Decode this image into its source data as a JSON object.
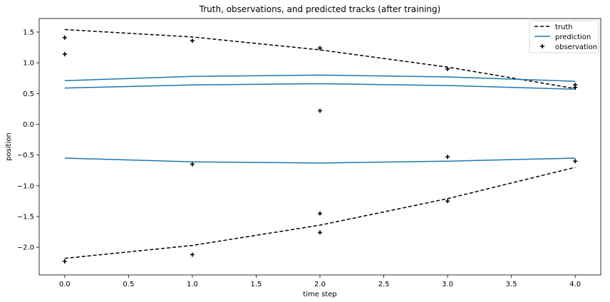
{
  "chart_data": {
    "type": "line",
    "title": "Truth, observations, and predicted tracks (after training)",
    "xlabel": "time step",
    "ylabel": "position",
    "xlim": [
      -0.2,
      4.2
    ],
    "ylim": [
      -2.45,
      1.72
    ],
    "xticks": [
      0.0,
      0.5,
      1.0,
      1.5,
      2.0,
      2.5,
      3.0,
      3.5,
      4.0
    ],
    "yticks": [
      -2.0,
      -1.5,
      -1.0,
      -0.5,
      0.0,
      0.5,
      1.0,
      1.5
    ],
    "xtick_labels": [
      "0.0",
      "0.5",
      "1.0",
      "1.5",
      "2.0",
      "2.5",
      "3.0",
      "3.5",
      "4.0"
    ],
    "ytick_labels": [
      "−2.0",
      "−1.5",
      "−1.0",
      "−0.5",
      "0.0",
      "0.5",
      "1.0",
      "1.5"
    ],
    "grid": false,
    "legend_position": "top-right",
    "x": [
      0,
      1,
      2,
      3,
      4
    ],
    "truth_color": "#000000",
    "prediction_color": "#1f77b4",
    "observation_color": "#000000",
    "series": [
      {
        "name": "truth",
        "kind": "truth",
        "values": [
          1.54,
          1.42,
          1.21,
          0.93,
          0.58
        ]
      },
      {
        "kind": "truth",
        "values": [
          -2.18,
          -1.97,
          -1.64,
          -1.21,
          -0.7
        ]
      },
      {
        "name": "prediction",
        "kind": "prediction",
        "values": [
          0.71,
          0.78,
          0.8,
          0.77,
          0.7
        ]
      },
      {
        "kind": "prediction",
        "values": [
          0.59,
          0.64,
          0.66,
          0.63,
          0.57
        ]
      },
      {
        "kind": "prediction",
        "values": [
          -0.55,
          -0.61,
          -0.63,
          -0.6,
          -0.55
        ]
      }
    ],
    "observations": {
      "name": "observation",
      "points": [
        [
          0,
          1.41
        ],
        [
          0,
          1.14
        ],
        [
          0,
          -2.23
        ],
        [
          1,
          1.36
        ],
        [
          1,
          -0.65
        ],
        [
          1,
          -2.12
        ],
        [
          2,
          1.24
        ],
        [
          2,
          0.22
        ],
        [
          2,
          -1.45
        ],
        [
          2,
          -1.76
        ],
        [
          3,
          0.9
        ],
        [
          3,
          -0.53
        ],
        [
          3,
          -1.25
        ],
        [
          4,
          0.64
        ],
        [
          4,
          0.6
        ],
        [
          4,
          -0.6
        ]
      ]
    },
    "legend": [
      {
        "label": "truth",
        "style": "dashed"
      },
      {
        "label": "prediction",
        "style": "solid"
      },
      {
        "label": "observation",
        "style": "marker"
      }
    ]
  }
}
